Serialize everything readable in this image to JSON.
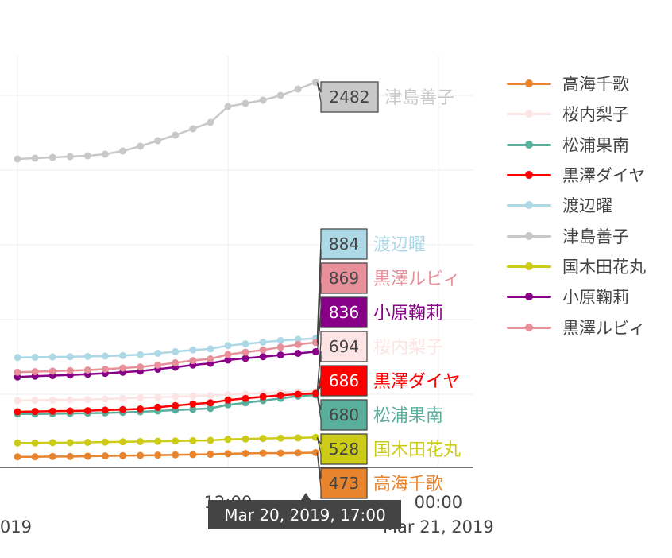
{
  "chart_data": {
    "type": "line",
    "hover_time": "Mar 20, 2019, 17:00",
    "x_ticks": [
      {
        "time": "2019-03-20T00:00",
        "line1": "",
        "line2": "019"
      },
      {
        "time": "2019-03-20T12:00",
        "line1": "12:00",
        "line2": ""
      },
      {
        "time": "2019-03-21T00:00",
        "line1": "00:00",
        "line2": "Mar 21, 2019"
      }
    ],
    "x_range": [
      "2019-03-19T23:00",
      "2019-03-21T02:00"
    ],
    "y_range": [
      420,
      2550
    ],
    "x": [
      "2019-03-20T00:00",
      "2019-03-20T01:00",
      "2019-03-20T02:00",
      "2019-03-20T03:00",
      "2019-03-20T04:00",
      "2019-03-20T05:00",
      "2019-03-20T06:00",
      "2019-03-20T07:00",
      "2019-03-20T08:00",
      "2019-03-20T09:00",
      "2019-03-20T10:00",
      "2019-03-20T11:00",
      "2019-03-20T12:00",
      "2019-03-20T13:00",
      "2019-03-20T14:00",
      "2019-03-20T15:00",
      "2019-03-20T16:00",
      "2019-03-20T17:00"
    ],
    "grid": true,
    "legend_position": "right",
    "series": [
      {
        "name": "高海千歌",
        "color": "#e8842e",
        "values": [
          458,
          458,
          459,
          459,
          460,
          461,
          462,
          463,
          464,
          465,
          466,
          467,
          469,
          470,
          471,
          471,
          472,
          473
        ]
      },
      {
        "name": "桜内梨子",
        "color": "#fce4e4",
        "values": [
          660,
          661,
          662,
          663,
          664,
          666,
          668,
          670,
          672,
          674,
          676,
          678,
          681,
          684,
          687,
          690,
          692,
          694
        ]
      },
      {
        "name": "松浦果南",
        "color": "#5aae9c",
        "values": [
          612,
          612,
          613,
          614,
          615,
          616,
          618,
          620,
          623,
          626,
          629,
          632,
          645,
          652,
          660,
          668,
          676,
          680
        ]
      },
      {
        "name": "黒澤ダイヤ",
        "color": "#ff0000",
        "values": [
          620,
          621,
          622,
          623,
          624,
          626,
          628,
          630,
          636,
          642,
          648,
          652,
          662,
          668,
          674,
          679,
          683,
          686
        ]
      },
      {
        "name": "渡辺曜",
        "color": "#add8e6",
        "values": [
          815,
          816,
          817,
          818,
          819,
          820,
          822,
          825,
          830,
          836,
          842,
          846,
          858,
          864,
          870,
          876,
          880,
          884
        ]
      },
      {
        "name": "津島善子",
        "color": "#c8c8c8",
        "values": [
          2000,
          2005,
          2010,
          2015,
          2020,
          2030,
          2050,
          2080,
          2115,
          2150,
          2190,
          2230,
          2330,
          2350,
          2370,
          2400,
          2440,
          2482
        ]
      },
      {
        "name": "国木田花丸",
        "color": "#cccc18",
        "values": [
          508,
          508,
          509,
          509,
          510,
          511,
          512,
          513,
          514,
          515,
          516,
          517,
          521,
          522,
          524,
          525,
          526,
          528
        ]
      },
      {
        "name": "小原鞠莉",
        "color": "#880088",
        "values": [
          745,
          748,
          750,
          752,
          755,
          758,
          762,
          766,
          773,
          780,
          788,
          794,
          806,
          812,
          818,
          824,
          830,
          836
        ]
      },
      {
        "name": "黒澤ルビィ",
        "color": "#e8909a",
        "values": [
          762,
          764,
          766,
          768,
          770,
          773,
          777,
          781,
          788,
          796,
          804,
          810,
          826,
          834,
          842,
          852,
          862,
          869
        ]
      }
    ],
    "hover_labels": [
      {
        "value": "2482",
        "name": "津島善子",
        "box_color": "#c8c8c8",
        "num_color": "#444444",
        "name_color": "#c8c8c8"
      },
      {
        "value": "884",
        "name": "渡辺曜",
        "box_color": "#add8e6",
        "num_color": "#444444",
        "name_color": "#add8e6"
      },
      {
        "value": "869",
        "name": "黒澤ルビィ",
        "box_color": "#e8909a",
        "num_color": "#444444",
        "name_color": "#e8909a"
      },
      {
        "value": "836",
        "name": "小原鞠莉",
        "box_color": "#880088",
        "num_color": "#ffffff",
        "name_color": "#880088"
      },
      {
        "value": "694",
        "name": "桜内梨子",
        "box_color": "#fce4e4",
        "num_color": "#444444",
        "name_color": "#fce4e4"
      },
      {
        "value": "686",
        "name": "黒澤ダイヤ",
        "box_color": "#ff0000",
        "num_color": "#ffffff",
        "name_color": "#ff0000"
      },
      {
        "value": "680",
        "name": "松浦果南",
        "box_color": "#5aae9c",
        "num_color": "#444444",
        "name_color": "#5aae9c"
      },
      {
        "value": "528",
        "name": "国木田花丸",
        "box_color": "#cccc18",
        "num_color": "#444444",
        "name_color": "#cccc18"
      },
      {
        "value": "473",
        "name": "高海千歌",
        "box_color": "#e8842e",
        "num_color": "#444444",
        "name_color": "#e8842e"
      }
    ]
  },
  "legend": {
    "items": [
      {
        "label": "高海千歌",
        "color": "#e8842e"
      },
      {
        "label": "桜内梨子",
        "color": "#fce4e4"
      },
      {
        "label": "松浦果南",
        "color": "#5aae9c"
      },
      {
        "label": "黒澤ダイヤ",
        "color": "#ff0000"
      },
      {
        "label": "渡辺曜",
        "color": "#add8e6"
      },
      {
        "label": "津島善子",
        "color": "#c8c8c8"
      },
      {
        "label": "国木田花丸",
        "color": "#cccc18"
      },
      {
        "label": "小原鞠莉",
        "color": "#880088"
      },
      {
        "label": "黒澤ルビィ",
        "color": "#e8909a"
      }
    ]
  }
}
